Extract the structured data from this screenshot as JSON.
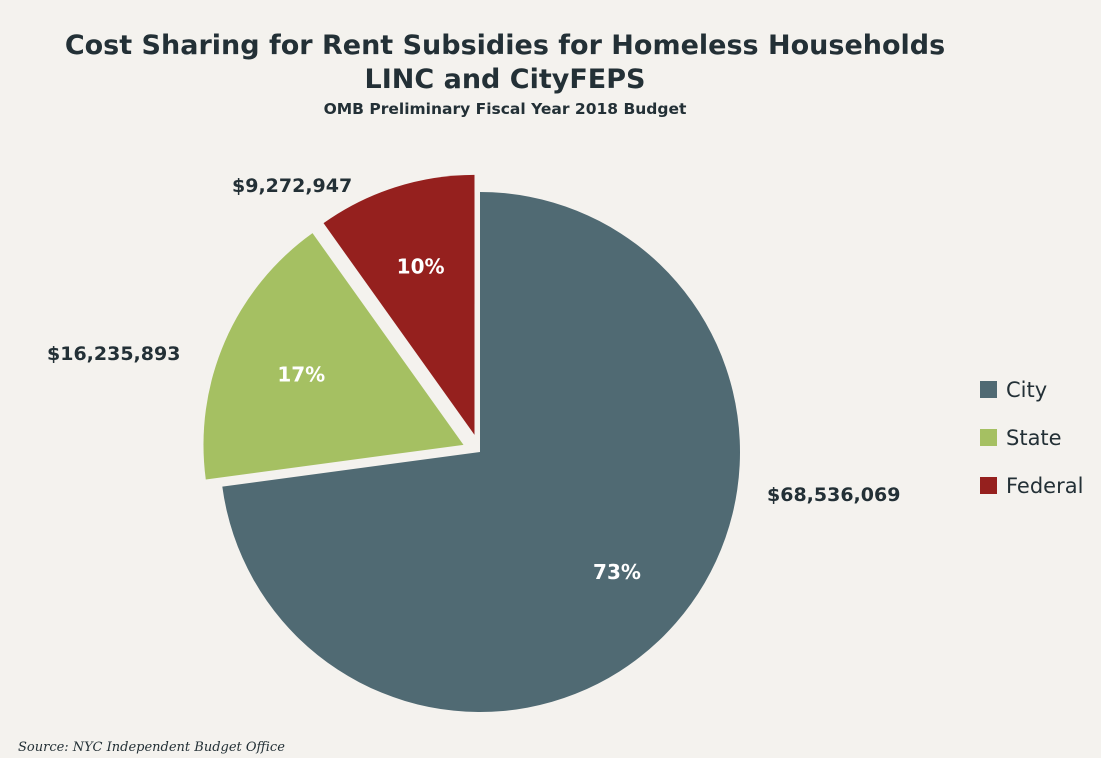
{
  "chart_data": {
    "type": "pie",
    "title": "Cost Sharing for Rent Subsidies for Homeless Households",
    "title_line2": "LINC and CityFEPS",
    "subtitle": "OMB Preliminary Fiscal Year 2018 Budget",
    "slices": [
      {
        "name": "City",
        "value": 68536069,
        "value_label": "$68,536,069",
        "percent": 73,
        "percent_label": "73%",
        "color": "#506a73",
        "exploded": false
      },
      {
        "name": "State",
        "value": 16235893,
        "value_label": "$16,235,893",
        "percent": 17,
        "percent_label": "17%",
        "color": "#a5c062",
        "exploded": true
      },
      {
        "name": "Federal",
        "value": 9272947,
        "value_label": "$9,272,947",
        "percent": 10,
        "percent_label": "10%",
        "color": "#95201e",
        "exploded": true
      }
    ],
    "legend": {
      "placement": "right",
      "entries": [
        "City",
        "State",
        "Federal"
      ]
    },
    "start_angle": "12 o'clock, clockwise"
  },
  "source": "Source:  NYC Independent Budget Office"
}
